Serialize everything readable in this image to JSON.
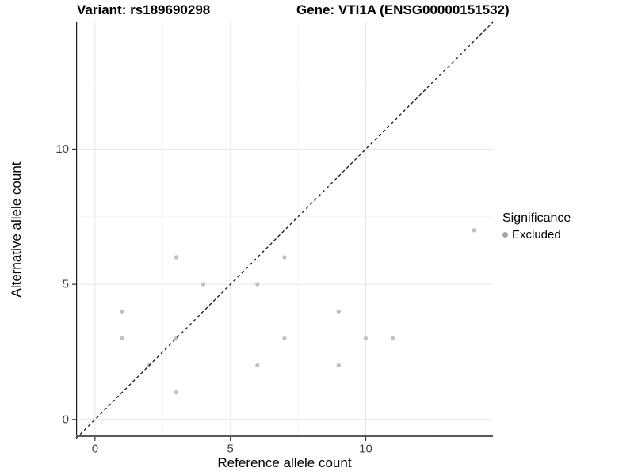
{
  "titles": {
    "variant": "Variant: rs189690298",
    "gene": "Gene: VTI1A (ENSG00000151532)"
  },
  "chart_data": {
    "type": "scatter",
    "xlabel": "Reference allele count",
    "ylabel": "Alternative allele count",
    "xlim": [
      -0.7,
      14.7
    ],
    "ylim": [
      -0.65,
      14.7
    ],
    "x_major_ticks": [
      0,
      5,
      10
    ],
    "y_major_ticks": [
      0,
      5,
      10
    ],
    "x_minor_gridlines": [
      2.5,
      7.5,
      12.5
    ],
    "y_minor_gridlines": [
      2.5,
      7.5,
      12.5
    ],
    "grid": "major-and-minor",
    "series": [
      {
        "name": "Excluded",
        "color": "#c1c1c1",
        "points": [
          [
            1,
            3
          ],
          [
            1,
            4
          ],
          [
            2,
            2
          ],
          [
            3,
            1
          ],
          [
            3,
            3
          ],
          [
            3,
            6
          ],
          [
            4,
            5
          ],
          [
            6,
            2
          ],
          [
            6,
            5
          ],
          [
            7,
            3
          ],
          [
            7,
            6
          ],
          [
            9,
            2
          ],
          [
            9,
            4
          ],
          [
            10,
            3
          ],
          [
            11,
            3
          ],
          [
            14,
            7
          ]
        ]
      }
    ],
    "reference_line": {
      "type": "identity",
      "equation": "y = x",
      "style": "dashed",
      "color": "#161616"
    },
    "legend": {
      "title": "Significance",
      "position": "right",
      "items": [
        {
          "label": "Excluded",
          "marker": "circle",
          "color": "#a6a6a6"
        }
      ]
    }
  },
  "colors": {
    "background": "#ffffff",
    "grid_major": "#e8e8e8",
    "grid_minor": "#f4f4f4",
    "x_axis_line": "#595959",
    "y_axis_line": "#1a1a1a",
    "tick_mark": "#333333",
    "tick_label": "#404040",
    "point": "#c1c1c1"
  }
}
